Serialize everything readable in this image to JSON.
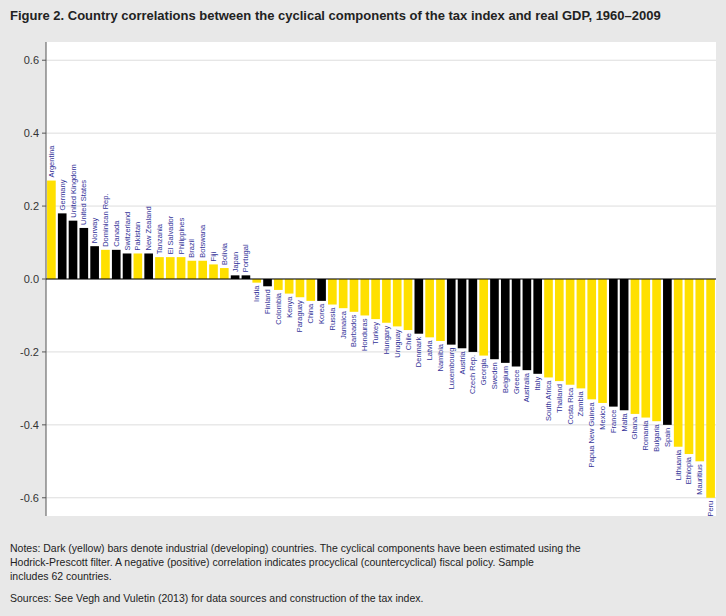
{
  "chart_data": {
    "type": "bar",
    "title": "Figure 2. Country correlations between the cyclical components of the tax index and real GDP, 1960–2009",
    "categories": [
      "Argentina",
      "Germany",
      "United Kingdom",
      "United States",
      "Norway",
      "Dominican Rep.",
      "Canada",
      "Switzerland",
      "Pakistan",
      "New Zealand",
      "Tanzania",
      "El Salvador",
      "Philippines",
      "Brazil",
      "Botswana",
      "Fiji",
      "Bolivia",
      "Japan",
      "Portugal",
      "India",
      "Finland",
      "Colombia",
      "Kenya",
      "Paraguay",
      "China",
      "Korea",
      "Russia",
      "Jamaica",
      "Barbados",
      "Honduras",
      "Turkey",
      "Hungary",
      "Uruguay",
      "Chile",
      "Denmark",
      "Latvia",
      "Namibia",
      "Luxembourg",
      "Austria",
      "Czech Rep.",
      "Georgia",
      "Sweden",
      "Belgium",
      "Greece",
      "Australia",
      "Italy",
      "South Africa",
      "Thailand",
      "Costa Rica",
      "Zambia",
      "Papua New Guinea",
      "Mexico",
      "France",
      "Malta",
      "Ghana",
      "Romania",
      "Bulgaria",
      "Spain",
      "Lithuania",
      "Ethiopia",
      "Mauritius",
      "Peru"
    ],
    "values": [
      0.27,
      0.18,
      0.16,
      0.14,
      0.09,
      0.08,
      0.08,
      0.07,
      0.07,
      0.07,
      0.06,
      0.06,
      0.06,
      0.05,
      0.05,
      0.04,
      0.03,
      0.01,
      0.01,
      -0.01,
      -0.02,
      -0.03,
      -0.04,
      -0.05,
      -0.06,
      -0.06,
      -0.07,
      -0.08,
      -0.09,
      -0.1,
      -0.11,
      -0.12,
      -0.13,
      -0.14,
      -0.15,
      -0.16,
      -0.17,
      -0.18,
      -0.19,
      -0.2,
      -0.21,
      -0.22,
      -0.23,
      -0.24,
      -0.25,
      -0.26,
      -0.27,
      -0.28,
      -0.29,
      -0.3,
      -0.33,
      -0.34,
      -0.35,
      -0.36,
      -0.37,
      -0.38,
      -0.39,
      -0.4,
      -0.46,
      -0.48,
      -0.5,
      -0.6
    ],
    "colors": [
      "#FFE000",
      "#000000",
      "#000000",
      "#000000",
      "#000000",
      "#FFE000",
      "#000000",
      "#000000",
      "#FFE000",
      "#000000",
      "#FFE000",
      "#FFE000",
      "#FFE000",
      "#FFE000",
      "#FFE000",
      "#FFE000",
      "#FFE000",
      "#000000",
      "#000000",
      "#FFE000",
      "#000000",
      "#FFE000",
      "#FFE000",
      "#FFE000",
      "#FFE000",
      "#000000",
      "#FFE000",
      "#FFE000",
      "#FFE000",
      "#FFE000",
      "#FFE000",
      "#FFE000",
      "#FFE000",
      "#FFE000",
      "#000000",
      "#FFE000",
      "#FFE000",
      "#000000",
      "#000000",
      "#000000",
      "#FFE000",
      "#000000",
      "#000000",
      "#000000",
      "#000000",
      "#000000",
      "#FFE000",
      "#FFE000",
      "#FFE000",
      "#FFE000",
      "#FFE000",
      "#FFE000",
      "#000000",
      "#000000",
      "#FFE000",
      "#FFE000",
      "#FFE000",
      "#000000",
      "#FFE000",
      "#FFE000",
      "#FFE000",
      "#FFE000"
    ],
    "ylim": [
      -0.65,
      0.65
    ],
    "yticks": [
      -0.6,
      -0.4,
      -0.2,
      {
        "value": 0.0,
        "label": "0.0"
      },
      0.2,
      0.4,
      0.6
    ],
    "grid": true,
    "annotations": [
      "Notes: Dark (yellow) bars denote industrial (developing) countries. The cyclical components have been estimated using the\nHodrick-Prescott filter. A negative (positive) correlation indicates procyclical (countercyclical) fiscal policy. Sample\nincludes 62 countries.",
      "Sources: See Vegh and Vuletin (2013) for data sources and construction of the tax index."
    ]
  }
}
